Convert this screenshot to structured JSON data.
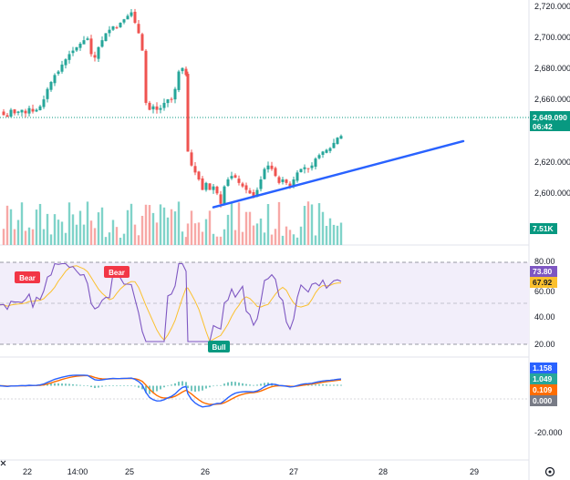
{
  "colors": {
    "up": "#26a69a",
    "down": "#ef5350",
    "vol_up": "#7fd3c9",
    "vol_down": "#f7a8a6",
    "trend": "#2962ff",
    "rsi": "#7e57c2",
    "rsi_ma": "#fbc02d",
    "rsi_band": "#ede7f6",
    "macd": "#2962ff",
    "signal": "#ff6d00",
    "hist_pos": "#26a69a",
    "hist_neg": "#26a69a",
    "price_tag": "#089981",
    "vol_tag": "#089981",
    "rsi_tag": "#7e57c2",
    "rsi_ma_tag": "#fbc02d",
    "macd_tag": "#2962ff",
    "signal_tag": "#26a69a",
    "hist_tag": "#ff6d00",
    "zero_tag": "#787b86",
    "bear": "#f23645",
    "bull": "#089981"
  },
  "price_axis": {
    "ticks": [
      "2,720.000",
      "2,700.000",
      "2,680.000",
      "2,660.000",
      "2,620.000",
      "2,600.000"
    ]
  },
  "tags": {
    "price": "2,649.090",
    "countdown": "06:42",
    "volume": "7.51K",
    "rsi": "73.80",
    "rsi_ma": "67.92",
    "macd": "1.158",
    "signal": "1.049",
    "hist": "0.109",
    "zero": "0.000"
  },
  "rsi_axis": {
    "ticks": [
      "80.00",
      "60.00",
      "40.00",
      "20.00"
    ]
  },
  "macd_axis": {
    "ticks": [
      "-20.000"
    ]
  },
  "time_axis": {
    "labels": [
      "22",
      "14:00",
      "25",
      "26",
      "27",
      "28",
      "29"
    ]
  },
  "signals": {
    "bear1": "Bear",
    "bear2": "Bear",
    "bull1": "Bull"
  },
  "chart_data": {
    "type": "candlestick",
    "symbol_axis": "price",
    "ylim": [
      2590,
      2725
    ],
    "current_price": 2649.09,
    "candles_close_path": [
      [
        0,
        2663
      ],
      [
        4,
        2661
      ],
      [
        8,
        2660
      ],
      [
        12,
        2664
      ],
      [
        16,
        2662
      ],
      [
        20,
        2663
      ],
      [
        24,
        2664
      ],
      [
        28,
        2662
      ],
      [
        32,
        2665
      ],
      [
        36,
        2663
      ],
      [
        40,
        2664
      ],
      [
        44,
        2666
      ],
      [
        48,
        2670
      ],
      [
        52,
        2676
      ],
      [
        56,
        2680
      ],
      [
        60,
        2684
      ],
      [
        64,
        2686
      ],
      [
        68,
        2690
      ],
      [
        72,
        2693
      ],
      [
        76,
        2696
      ],
      [
        80,
        2698
      ],
      [
        84,
        2700
      ],
      [
        88,
        2702
      ],
      [
        92,
        2704
      ],
      [
        96,
        2705
      ],
      [
        100,
        2696
      ],
      [
        104,
        2694
      ],
      [
        108,
        2700
      ],
      [
        112,
        2704
      ],
      [
        116,
        2708
      ],
      [
        120,
        2710
      ],
      [
        124,
        2712
      ],
      [
        128,
        2711
      ],
      [
        132,
        2714
      ],
      [
        136,
        2716
      ],
      [
        140,
        2718
      ],
      [
        144,
        2720
      ],
      [
        148,
        2714
      ],
      [
        152,
        2708
      ],
      [
        156,
        2698
      ],
      [
        160,
        2668
      ],
      [
        164,
        2664
      ],
      [
        168,
        2666
      ],
      [
        172,
        2664
      ],
      [
        176,
        2665
      ],
      [
        180,
        2668
      ],
      [
        184,
        2670
      ],
      [
        188,
        2670
      ],
      [
        192,
        2676
      ],
      [
        196,
        2686
      ],
      [
        200,
        2688
      ],
      [
        204,
        2684
      ],
      [
        206,
        2640
      ],
      [
        210,
        2632
      ],
      [
        214,
        2628
      ],
      [
        218,
        2624
      ],
      [
        222,
        2618
      ],
      [
        226,
        2622
      ],
      [
        230,
        2618
      ],
      [
        234,
        2620
      ],
      [
        238,
        2616
      ],
      [
        242,
        2610
      ],
      [
        246,
        2620
      ],
      [
        250,
        2624
      ],
      [
        254,
        2626
      ],
      [
        258,
        2625
      ],
      [
        262,
        2622
      ],
      [
        266,
        2620
      ],
      [
        270,
        2618
      ],
      [
        274,
        2616
      ],
      [
        278,
        2614
      ],
      [
        282,
        2618
      ],
      [
        286,
        2624
      ],
      [
        290,
        2630
      ],
      [
        294,
        2632
      ],
      [
        298,
        2630
      ],
      [
        302,
        2626
      ],
      [
        306,
        2622
      ],
      [
        310,
        2624
      ],
      [
        314,
        2622
      ],
      [
        318,
        2620
      ],
      [
        322,
        2624
      ],
      [
        326,
        2628
      ],
      [
        330,
        2630
      ],
      [
        334,
        2631
      ],
      [
        338,
        2630
      ],
      [
        342,
        2632
      ],
      [
        346,
        2636
      ],
      [
        350,
        2638
      ],
      [
        354,
        2640
      ],
      [
        358,
        2641
      ],
      [
        362,
        2642
      ],
      [
        366,
        2645
      ],
      [
        370,
        2648
      ],
      [
        374,
        2649
      ]
    ],
    "trendline": {
      "from": [
        234,
        2608
      ],
      "to": [
        508,
        2646
      ]
    },
    "rsi": {
      "ylim": [
        15,
        85
      ],
      "levels": [
        80,
        60,
        40,
        20
      ]
    },
    "macd": {
      "ylim": [
        -30,
        10
      ]
    }
  }
}
